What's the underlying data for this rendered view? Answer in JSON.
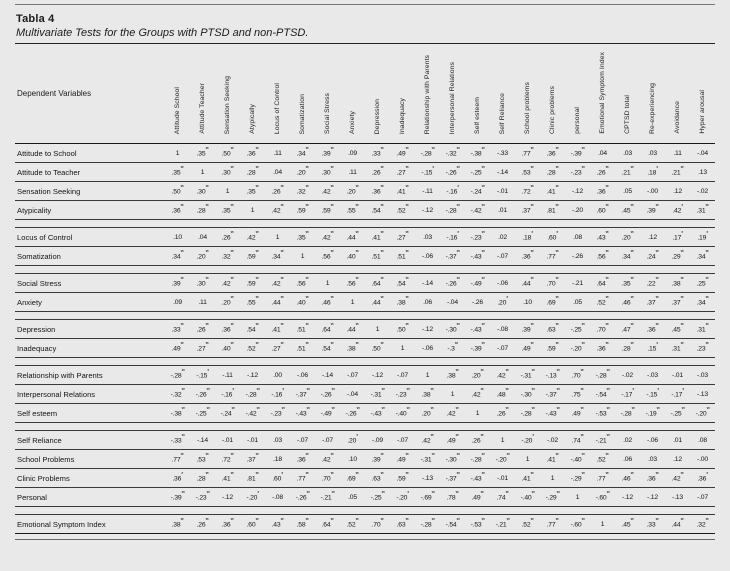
{
  "page": {
    "title": "Tabla 4",
    "subtitle": "Multivariate Tests for the Groups with PTSD and non-PTSD."
  },
  "colors": {
    "background": "#e9e9e9",
    "text": "#1b1b1b",
    "rule": "#1a1a1a"
  },
  "table": {
    "corner_header": "Dependent Variables",
    "column_headers": [
      "Attitude School",
      "Attitude Teacher",
      "Sensation Seeking",
      "Atypically",
      "Locus of Control",
      "Somatization",
      "Social Stress",
      "Anxiety",
      "Depression",
      "Inadequacy",
      "Relationship with Parents",
      "Interpersonal Relations",
      "Self esteem",
      "Self Reliance",
      "School problems",
      "Clinic problems",
      "personal",
      "Emotional Symptom Index",
      "CPTSD total",
      "Re-experiencing",
      "Avoidance",
      "Hyper arousal"
    ],
    "row_groups": [
      {
        "rows": [
          {
            "label": "Attitude to School",
            "values": [
              "1",
              ".35**",
              ".50**",
              ".36**",
              ".11",
              ".34**",
              ".39**",
              ".09",
              ".33**",
              ".49**",
              "-.28**",
              "-.32**",
              "-.38**",
              "-.33",
              ".77**",
              ".36**",
              "-.39**",
              ".04",
              ".03",
              ".03",
              ".11",
              "-.04"
            ]
          },
          {
            "label": "Attitude to Teacher",
            "values": [
              ".35**",
              "1",
              ".30**",
              ".28**",
              ".04",
              ".20**",
              ".30**",
              ".11",
              ".26**",
              ".27**",
              "-.15*",
              "-.26**",
              "-.25**",
              "-.14",
              ".53**",
              ".28**",
              "-.23**",
              ".26**",
              ".21**",
              ".18*",
              ".21**",
              ".13"
            ]
          },
          {
            "label": "Sensation Seeking",
            "values": [
              ".50**",
              ".30**",
              "1",
              ".35**",
              ".26**",
              ".32**",
              ".42**",
              ".20**",
              ".36**",
              ".41**",
              "-.11",
              "-.16*",
              "-.24**",
              "-.01",
              ".72**",
              ".41**",
              "-.12",
              ".36**",
              ".05",
              "-.00",
              ".12",
              "-.02"
            ]
          },
          {
            "label": "Atypicality",
            "values": [
              ".36**",
              ".28**",
              ".35**",
              "1",
              ".42**",
              ".59**",
              ".59**",
              ".55**",
              ".54**",
              ".52**",
              "-.12",
              "-.28**",
              "-.42**",
              ".01",
              ".37**",
              ".81**",
              "-.20",
              ".60**",
              ".45**",
              ".39**",
              ".42*",
              ".31**"
            ]
          }
        ]
      },
      {
        "rows": [
          {
            "label": "Locus of Control",
            "values": [
              ".10",
              ".04",
              ".26**",
              ".42**",
              "1",
              ".35**",
              ".42**",
              ".44**",
              ".41**",
              ".27**",
              ".03",
              "-.16*",
              "-.23**",
              ".02",
              ".18*",
              ".60*",
              ".08",
              ".43**",
              ".20**",
              ".12",
              ".17*",
              ".19*"
            ]
          },
          {
            "label": "Somatization",
            "values": [
              ".34**",
              ".20**",
              ".32**",
              ".59**",
              ".34**",
              "1",
              ".56**",
              ".40**",
              ".51**",
              ".51**",
              "-.06",
              "-.37**",
              "-.43**",
              "-.07",
              ".36**",
              ".77**",
              "-.26",
              ".56**",
              ".34**",
              ".24**",
              ".29**",
              ".34**"
            ]
          }
        ]
      },
      {
        "rows": [
          {
            "label": "Social Stress",
            "values": [
              ".39**",
              ".30**",
              ".42**",
              ".59**",
              ".42**",
              ".56**",
              "1",
              ".56**",
              ".64**",
              ".54**",
              "-.14",
              "-.26**",
              "-.49**",
              "-.06",
              ".44**",
              ".70**",
              "-.21",
              ".64**",
              ".35**",
              ".22**",
              ".38**",
              ".25**"
            ]
          },
          {
            "label": "Anxiety",
            "values": [
              ".09",
              ".11",
              ".20**",
              ".55**",
              ".44**",
              ".40**",
              ".46**",
              "1",
              ".44**",
              ".38**",
              ".06",
              "-.04",
              "-.26",
              ".20*",
              ".10",
              ".69**",
              ".05",
              ".52**",
              ".46**",
              ".37**",
              ".37**",
              ".34**"
            ]
          }
        ]
      },
      {
        "rows": [
          {
            "label": "Depression",
            "values": [
              ".33**",
              ".26**",
              ".36**",
              ".54**",
              ".41**",
              ".51**",
              ".64**",
              ".44**",
              "1",
              ".50**",
              "-.12",
              "-.30**",
              "-.43**",
              "-.08",
              ".39**",
              ".63**",
              "-.25**",
              ".70**",
              ".47**",
              ".36**",
              ".45**",
              ".31**"
            ]
          },
          {
            "label": "Inadequacy",
            "values": [
              ".49**",
              ".27**",
              ".40**",
              ".52**",
              ".27**",
              ".51**",
              ".54**",
              ".38**",
              ".50**",
              "1",
              "-.06",
              "-.3**",
              "-.39**",
              "-.07",
              ".49**",
              ".59**",
              "-.20**",
              ".36**",
              ".28**",
              ".15*",
              ".31**",
              ".23**"
            ]
          }
        ]
      },
      {
        "rows": [
          {
            "label": "Relationship with Parents",
            "values": [
              "-.28**",
              "-.15*",
              "-.11",
              "-.12",
              ".00",
              "-.06",
              "-.14",
              "-.07",
              "-.12",
              "-.07",
              "1",
              ".38**",
              ".20**",
              ".42**",
              "-.31**",
              "-.13**",
              ".70**",
              "-.28**",
              "-.02",
              "-.03",
              "-.01",
              "-.03"
            ]
          },
          {
            "label": "Interpersonal Relations",
            "values": [
              "-.32**",
              "-.26**",
              "-.16*",
              "-.28**",
              "-.16*",
              "-.37**",
              "-.26**",
              "-.04",
              "-.31**",
              "-.23**",
              ".38**",
              "1",
              ".42**",
              ".48**",
              "-.30**",
              "-.37**",
              ".75**",
              "-.54**",
              "-.17*",
              "-.15*",
              "-.17*",
              "-.13"
            ]
          },
          {
            "label": "Self esteem",
            "values": [
              "-.38**",
              "-.25**",
              "-.24**",
              "-.42**",
              "-.23**",
              "-.43**",
              "-.49**",
              "-.26**",
              "-.43**",
              "-.40**",
              ".20**",
              ".42**",
              "1",
              ".26**",
              "-.28**",
              "-.43**",
              ".49**",
              "-.53**",
              "-.28**",
              "-.19**",
              "-.25**",
              "-.20**"
            ]
          }
        ]
      },
      {
        "rows": [
          {
            "label": "Self Reliance",
            "values": [
              "-.33**",
              "-.14",
              "-.01",
              "-.01",
              ".03",
              "-.07",
              "-.07",
              ".20*",
              "-.09",
              "-.07",
              ".42**",
              ".49**",
              ".26**",
              "1",
              "-.20*",
              "-.02",
              ".74**",
              "-.21**",
              ".02",
              "-.06",
              ".01",
              ".08"
            ]
          },
          {
            "label": "School Problems",
            "values": [
              ".77**",
              ".53**",
              ".72**",
              ".37**",
              ".18",
              ".36**",
              ".42**",
              ".10",
              ".39**",
              ".49**",
              "-.31**",
              "-.30**",
              "-.28**",
              "-.20**",
              "1",
              ".41**",
              "-.40**",
              ".52**",
              ".06",
              ".03",
              ".12",
              "-.00"
            ]
          },
          {
            "label": "Clinic Problems",
            "values": [
              ".36*",
              ".28**",
              ".41**",
              ".81**",
              ".60*",
              ".77**",
              ".70**",
              ".69**",
              ".63**",
              ".59**",
              "-.13",
              "-.37**",
              "-.43**",
              "-.01",
              ".41**",
              "1",
              "-.29**",
              ".77**",
              ".46**",
              ".36**",
              ".42**",
              ".36*"
            ]
          },
          {
            "label": "Personal",
            "values": [
              "-.39**",
              "-.23**",
              "-.12",
              "-.20*",
              "-.08",
              "-.26**",
              "-.21**",
              ".05",
              "-.25**",
              "-.20*",
              "-.69**",
              ".78**",
              ".49**",
              ".74**",
              "-.40**",
              "-.29**",
              "1",
              "-.60**",
              "-.12",
              "-.12",
              "-.13",
              "-.07"
            ]
          }
        ]
      },
      {
        "rows": [
          {
            "label": "Emotional Symptom Index",
            "values": [
              ".38**",
              ".26**",
              ".36**",
              ".60**",
              ".43**",
              ".58**",
              ".64**",
              ".52**",
              ".70**",
              ".63**",
              "-.28**",
              "-.54**",
              "-.53**",
              "-.21**",
              ".52**",
              ".77**",
              "-.60**",
              "1",
              ".45**",
              ".33**",
              ".44**",
              ".32**"
            ]
          }
        ]
      }
    ]
  }
}
